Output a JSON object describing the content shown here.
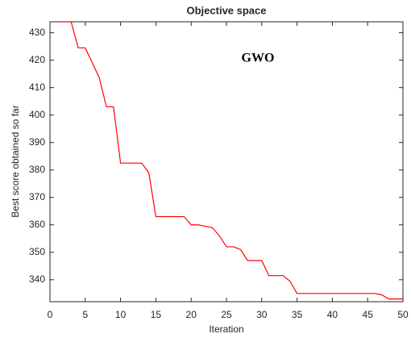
{
  "chart_data": {
    "type": "line",
    "title": "Objective space",
    "xlabel": "Iteration",
    "ylabel": "Best score obtained so far",
    "annotation": "GWO",
    "x": [
      1,
      2,
      3,
      4,
      5,
      6,
      7,
      8,
      9,
      10,
      11,
      12,
      13,
      14,
      15,
      16,
      17,
      18,
      19,
      20,
      21,
      22,
      23,
      24,
      25,
      26,
      27,
      28,
      29,
      30,
      31,
      32,
      33,
      34,
      35,
      36,
      37,
      38,
      39,
      40,
      41,
      42,
      43,
      44,
      45,
      46,
      47,
      48,
      49,
      50
    ],
    "series": [
      {
        "name": "GWO",
        "color": "#ff0000",
        "values": [
          434,
          434,
          434,
          424.5,
          424.5,
          419,
          413.5,
          403,
          403,
          382.5,
          382.5,
          382.5,
          382.5,
          379,
          363,
          363,
          363,
          363,
          363,
          360,
          360,
          359.5,
          359,
          356,
          352,
          352,
          351,
          347,
          347,
          347,
          341.5,
          341.5,
          341.5,
          339.5,
          335,
          335,
          335,
          335,
          335,
          335,
          335,
          335,
          335,
          335,
          335,
          335,
          334.5,
          333,
          333,
          333
        ]
      }
    ],
    "xlim": [
      0,
      50
    ],
    "xticks": [
      0,
      5,
      10,
      15,
      20,
      25,
      30,
      35,
      40,
      45,
      50
    ],
    "ylim": [
      332,
      434
    ],
    "yticks": [
      340,
      350,
      360,
      370,
      380,
      390,
      400,
      410,
      420,
      430
    ],
    "grid": false
  }
}
